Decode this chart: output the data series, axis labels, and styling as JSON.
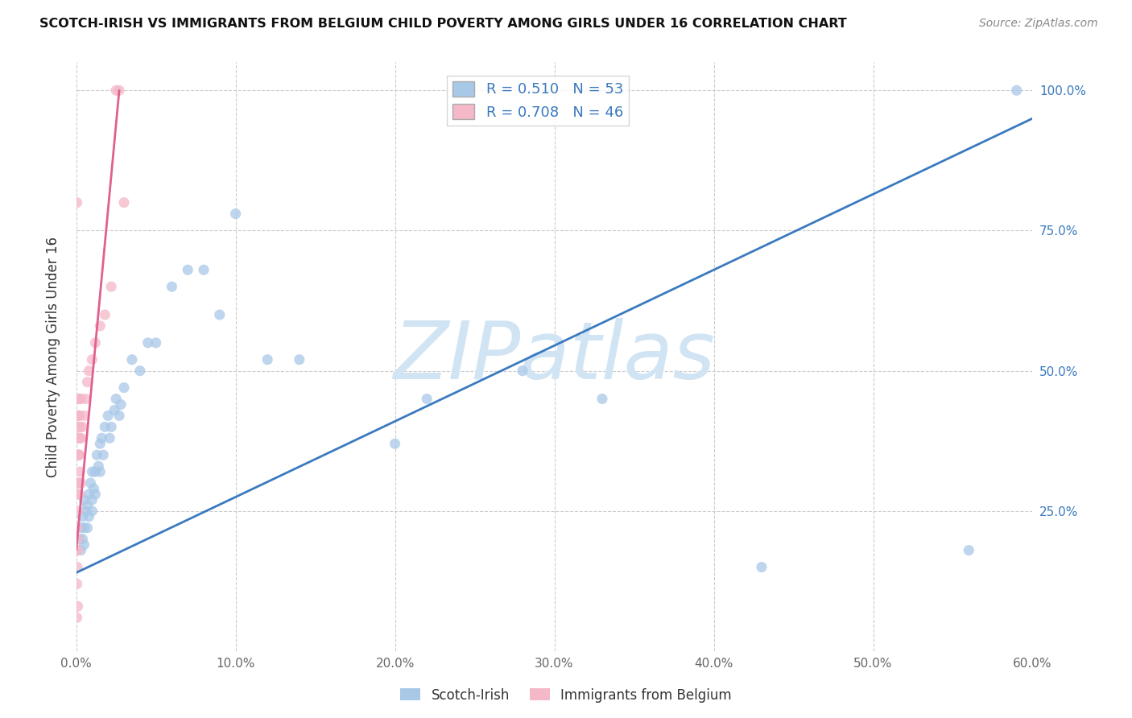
{
  "title": "SCOTCH-IRISH VS IMMIGRANTS FROM BELGIUM CHILD POVERTY AMONG GIRLS UNDER 16 CORRELATION CHART",
  "source": "Source: ZipAtlas.com",
  "ylabel": "Child Poverty Among Girls Under 16",
  "legend_labels": [
    "Scotch-Irish",
    "Immigrants from Belgium"
  ],
  "R_blue": 0.51,
  "N_blue": 53,
  "R_pink": 0.708,
  "N_pink": 46,
  "blue_color": "#a8c8e8",
  "pink_color": "#f4b8c8",
  "blue_line_color": "#3a7abf",
  "pink_line_color": "#e06090",
  "watermark_text": "ZIPatlas",
  "watermark_color": "#d0e4f4",
  "xlim": [
    0.0,
    0.6
  ],
  "ylim": [
    0.0,
    1.05
  ],
  "x_ticks": [
    0.0,
    0.1,
    0.2,
    0.3,
    0.4,
    0.5,
    0.6
  ],
  "y_ticks": [
    0.0,
    0.25,
    0.5,
    0.75,
    1.0
  ],
  "blue_scatter_x": [
    0.002,
    0.003,
    0.003,
    0.004,
    0.004,
    0.005,
    0.005,
    0.005,
    0.006,
    0.007,
    0.007,
    0.008,
    0.008,
    0.009,
    0.01,
    0.01,
    0.01,
    0.011,
    0.012,
    0.012,
    0.013,
    0.014,
    0.015,
    0.015,
    0.016,
    0.017,
    0.018,
    0.02,
    0.021,
    0.022,
    0.024,
    0.025,
    0.027,
    0.028,
    0.03,
    0.035,
    0.04,
    0.045,
    0.05,
    0.06,
    0.07,
    0.08,
    0.09,
    0.1,
    0.12,
    0.14,
    0.2,
    0.22,
    0.28,
    0.33,
    0.43,
    0.56,
    0.59
  ],
  "blue_scatter_y": [
    0.2,
    0.22,
    0.18,
    0.24,
    0.2,
    0.22,
    0.27,
    0.19,
    0.25,
    0.26,
    0.22,
    0.28,
    0.24,
    0.3,
    0.27,
    0.32,
    0.25,
    0.29,
    0.32,
    0.28,
    0.35,
    0.33,
    0.37,
    0.32,
    0.38,
    0.35,
    0.4,
    0.42,
    0.38,
    0.4,
    0.43,
    0.45,
    0.42,
    0.44,
    0.47,
    0.52,
    0.5,
    0.55,
    0.55,
    0.65,
    0.68,
    0.68,
    0.6,
    0.78,
    0.52,
    0.52,
    0.37,
    0.45,
    0.5,
    0.45,
    0.15,
    0.18,
    1.0
  ],
  "pink_scatter_x": [
    0.0005,
    0.0005,
    0.0005,
    0.0007,
    0.0007,
    0.0008,
    0.0008,
    0.0009,
    0.001,
    0.001,
    0.001,
    0.001,
    0.0012,
    0.0012,
    0.0013,
    0.0014,
    0.0015,
    0.0015,
    0.0016,
    0.0017,
    0.0018,
    0.0019,
    0.002,
    0.002,
    0.002,
    0.0022,
    0.0023,
    0.0024,
    0.0025,
    0.003,
    0.003,
    0.003,
    0.004,
    0.005,
    0.006,
    0.007,
    0.008,
    0.01,
    0.012,
    0.015,
    0.018,
    0.022,
    0.025,
    0.027,
    0.03,
    0.0005
  ],
  "pink_scatter_y": [
    0.18,
    0.12,
    0.06,
    0.22,
    0.15,
    0.25,
    0.18,
    0.3,
    0.35,
    0.28,
    0.2,
    0.08,
    0.38,
    0.3,
    0.42,
    0.35,
    0.45,
    0.38,
    0.4,
    0.42,
    0.35,
    0.38,
    0.42,
    0.35,
    0.28,
    0.45,
    0.38,
    0.32,
    0.4,
    0.45,
    0.38,
    0.3,
    0.4,
    0.42,
    0.45,
    0.48,
    0.5,
    0.52,
    0.55,
    0.58,
    0.6,
    0.65,
    1.0,
    1.0,
    0.8,
    0.8
  ],
  "blue_line_x0": 0.0,
  "blue_line_y0": 0.14,
  "blue_line_x1": 0.6,
  "blue_line_y1": 0.95,
  "pink_line_x0": 0.0,
  "pink_line_y0": 0.18,
  "pink_line_x1": 0.027,
  "pink_line_y1": 1.0
}
